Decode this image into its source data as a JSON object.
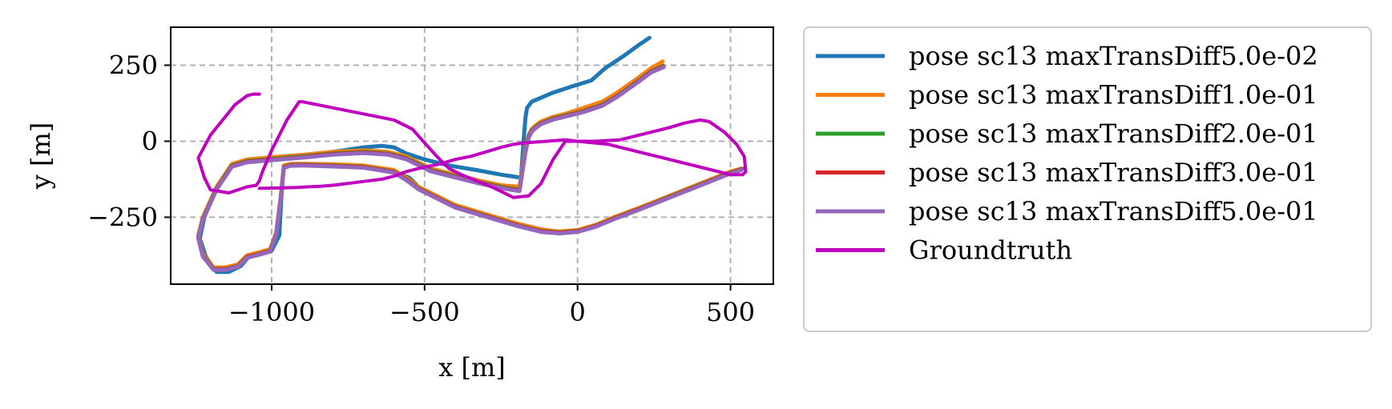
{
  "chart_data": {
    "type": "line",
    "xlabel": "x [m]",
    "ylabel": "y [m]",
    "xlim": [
      -1330,
      640
    ],
    "ylim": [
      -470,
      375
    ],
    "xticks": [
      -1000,
      -500,
      0,
      500
    ],
    "yticks": [
      250,
      0,
      -250
    ],
    "xtick_labels": [
      "−1000",
      "−500",
      "0",
      "500"
    ],
    "ytick_labels": [
      "250",
      "0",
      "−250"
    ],
    "grid": true,
    "legend_position": "outside-right",
    "series": [
      {
        "name": "pose sc13 maxTransDiff5.0e-02",
        "color": "#1f77b4",
        "x": [
          235,
          205,
          150,
          90,
          45,
          -20,
          -80,
          -150,
          -165,
          -170,
          -175,
          -185,
          -250,
          -330,
          -420,
          -500,
          -560,
          -600,
          -640,
          -700,
          -800,
          -900,
          -960,
          -1020,
          -1080,
          -1130,
          -1180,
          -1220,
          -1235,
          -1215,
          -1180,
          -1140,
          -1100,
          -1075,
          -1040,
          -1000,
          -975,
          -968,
          -960,
          -940,
          -900,
          -800,
          -700,
          -600,
          -550,
          -520,
          -470,
          -400,
          -300,
          -200,
          -120,
          -60,
          0,
          60,
          120,
          200,
          300,
          400,
          500,
          540
        ],
        "y": [
          340,
          320,
          280,
          240,
          200,
          180,
          160,
          130,
          110,
          80,
          20,
          -120,
          -110,
          -95,
          -80,
          -60,
          -40,
          -20,
          -15,
          -20,
          -35,
          -45,
          -50,
          -55,
          -65,
          -80,
          -150,
          -250,
          -320,
          -380,
          -430,
          -430,
          -410,
          -380,
          -370,
          -360,
          -310,
          -180,
          -80,
          -75,
          -75,
          -78,
          -82,
          -100,
          -120,
          -150,
          -180,
          -210,
          -240,
          -270,
          -290,
          -298,
          -295,
          -275,
          -250,
          -220,
          -180,
          -140,
          -100,
          -90
        ]
      },
      {
        "name": "pose sc13 maxTransDiff1.0e-01",
        "color": "#ff7f0e",
        "x": [
          278,
          240,
          200,
          130,
          80,
          20,
          -40,
          -80,
          -120,
          -140,
          -150,
          -160,
          -170,
          -190,
          -250,
          -320,
          -400,
          -480,
          -520,
          -560,
          -620,
          -700,
          -800,
          -900,
          -960,
          -1020,
          -1080,
          -1130,
          -1180,
          -1225,
          -1240,
          -1225,
          -1190,
          -1150,
          -1110,
          -1080,
          -1040,
          -1005,
          -985,
          -970,
          -960,
          -940,
          -900,
          -800,
          -700,
          -600,
          -560,
          -520,
          -460,
          -400,
          -300,
          -200,
          -120,
          -60,
          0,
          60,
          120,
          200,
          300,
          400,
          500,
          535
        ],
        "y": [
          262,
          240,
          210,
          160,
          130,
          110,
          90,
          80,
          65,
          50,
          40,
          20,
          -20,
          -150,
          -145,
          -130,
          -110,
          -90,
          -70,
          -50,
          -35,
          -30,
          -35,
          -45,
          -50,
          -55,
          -60,
          -75,
          -150,
          -250,
          -310,
          -370,
          -415,
          -415,
          -405,
          -375,
          -365,
          -355,
          -300,
          -180,
          -80,
          -75,
          -74,
          -76,
          -80,
          -95,
          -120,
          -150,
          -180,
          -210,
          -240,
          -270,
          -290,
          -297,
          -292,
          -275,
          -250,
          -220,
          -180,
          -140,
          -100,
          -90
        ]
      },
      {
        "name": "pose sc13 maxTransDiff2.0e-01",
        "color": "#2ca02c",
        "x": [
          280,
          240,
          200,
          130,
          80,
          20,
          -40,
          -80,
          -120,
          -140,
          -150,
          -160,
          -170,
          -190,
          -250,
          -320,
          -400,
          -480,
          -520,
          -560,
          -620,
          -700,
          -800,
          -900,
          -960,
          -1020,
          -1080,
          -1130,
          -1180,
          -1225,
          -1240,
          -1225,
          -1190,
          -1150,
          -1110,
          -1080,
          -1040,
          -1005,
          -985,
          -970,
          -960,
          -940,
          -900,
          -800,
          -700,
          -600,
          -560,
          -520,
          -460,
          -400,
          -300,
          -200,
          -120,
          -60,
          0,
          60,
          120,
          200,
          300,
          400,
          500,
          535
        ],
        "y": [
          248,
          230,
          200,
          150,
          120,
          100,
          85,
          75,
          60,
          45,
          35,
          15,
          -30,
          -160,
          -150,
          -135,
          -115,
          -95,
          -75,
          -55,
          -40,
          -35,
          -40,
          -50,
          -55,
          -60,
          -65,
          -80,
          -155,
          -255,
          -315,
          -375,
          -420,
          -420,
          -410,
          -380,
          -370,
          -360,
          -305,
          -185,
          -85,
          -78,
          -77,
          -80,
          -84,
          -100,
          -125,
          -155,
          -185,
          -215,
          -245,
          -275,
          -295,
          -300,
          -295,
          -278,
          -253,
          -223,
          -183,
          -143,
          -103,
          -92
        ]
      },
      {
        "name": "pose sc13 maxTransDiff3.0e-01",
        "color": "#d62728",
        "x": [
          281,
          240,
          200,
          130,
          80,
          20,
          -40,
          -80,
          -120,
          -140,
          -150,
          -160,
          -170,
          -190,
          -250,
          -320,
          -400,
          -480,
          -520,
          -560,
          -620,
          -700,
          -800,
          -900,
          -960,
          -1020,
          -1080,
          -1130,
          -1180,
          -1225,
          -1240,
          -1225,
          -1190,
          -1150,
          -1110,
          -1080,
          -1040,
          -1005,
          -985,
          -970,
          -960,
          -940,
          -900,
          -800,
          -700,
          -600,
          -560,
          -520,
          -460,
          -400,
          -300,
          -200,
          -120,
          -60,
          0,
          60,
          120,
          200,
          300,
          400,
          500,
          535
        ],
        "y": [
          246,
          228,
          198,
          148,
          118,
          98,
          83,
          73,
          58,
          43,
          33,
          13,
          -32,
          -162,
          -152,
          -137,
          -117,
          -97,
          -77,
          -57,
          -42,
          -37,
          -42,
          -52,
          -57,
          -62,
          -67,
          -82,
          -157,
          -257,
          -317,
          -377,
          -421,
          -421,
          -411,
          -381,
          -371,
          -361,
          -306,
          -186,
          -86,
          -79,
          -78,
          -81,
          -85,
          -101,
          -126,
          -156,
          -186,
          -216,
          -246,
          -276,
          -296,
          -301,
          -296,
          -279,
          -254,
          -224,
          -184,
          -144,
          -104,
          -93
        ]
      },
      {
        "name": "pose sc13 maxTransDiff5.0e-01",
        "color": "#9467bd",
        "x": [
          282,
          240,
          200,
          130,
          80,
          20,
          -40,
          -80,
          -120,
          -140,
          -150,
          -160,
          -170,
          -190,
          -250,
          -320,
          -400,
          -480,
          -520,
          -560,
          -620,
          -700,
          -800,
          -900,
          -960,
          -1020,
          -1080,
          -1130,
          -1180,
          -1225,
          -1240,
          -1225,
          -1190,
          -1150,
          -1110,
          -1080,
          -1040,
          -1005,
          -985,
          -970,
          -960,
          -940,
          -900,
          -800,
          -700,
          -600,
          -560,
          -520,
          -460,
          -400,
          -300,
          -200,
          -120,
          -60,
          0,
          60,
          120,
          200,
          300,
          400,
          500,
          535
        ],
        "y": [
          244,
          226,
          196,
          146,
          116,
          96,
          81,
          71,
          56,
          41,
          31,
          11,
          -34,
          -164,
          -154,
          -139,
          -119,
          -99,
          -79,
          -59,
          -44,
          -39,
          -44,
          -54,
          -59,
          -64,
          -69,
          -84,
          -159,
          -259,
          -319,
          -379,
          -423,
          -423,
          -413,
          -383,
          -373,
          -363,
          -308,
          -188,
          -88,
          -81,
          -80,
          -83,
          -87,
          -103,
          -128,
          -158,
          -188,
          -218,
          -248,
          -278,
          -298,
          -303,
          -298,
          -281,
          -256,
          -226,
          -186,
          -146,
          -106,
          -95
        ]
      },
      {
        "name": "Groundtruth",
        "color": "#bf00bf",
        "x": [
          -1040,
          -1060,
          -1080,
          -1120,
          -1160,
          -1200,
          -1240,
          -1220,
          -1200,
          -1140,
          -1080,
          -1050,
          -1040,
          -1030,
          -1000,
          -950,
          -910,
          -900,
          -800,
          -700,
          -600,
          -540,
          -500,
          -460,
          -420,
          -380,
          -330,
          -270,
          -210,
          -160,
          -120,
          -80,
          -40,
          0,
          60,
          140,
          200,
          300,
          350,
          400,
          430,
          480,
          520,
          545,
          550,
          540,
          500,
          400,
          300,
          200,
          100,
          0,
          -40,
          -100,
          -170,
          -210,
          -250,
          -300,
          -350,
          -400,
          -450,
          -500,
          -560,
          -600,
          -640,
          -680,
          -720,
          -760,
          -800,
          -840,
          -880,
          -920,
          -960,
          -1000,
          -1040
        ],
        "y": [
          155,
          155,
          150,
          120,
          70,
          20,
          -55,
          -120,
          -160,
          -170,
          -150,
          -145,
          -130,
          -100,
          -30,
          70,
          130,
          130,
          110,
          90,
          70,
          40,
          -5,
          -50,
          -90,
          -110,
          -130,
          -155,
          -185,
          -180,
          -140,
          -60,
          0,
          0,
          0,
          5,
          20,
          45,
          60,
          70,
          65,
          30,
          -10,
          -50,
          -100,
          -110,
          -110,
          -85,
          -60,
          -35,
          -10,
          0,
          5,
          0,
          -5,
          -10,
          -20,
          -35,
          -50,
          -60,
          -75,
          -85,
          -100,
          -115,
          -125,
          -130,
          -135,
          -140,
          -145,
          -148,
          -150,
          -152,
          -153,
          -154,
          -155
        ]
      }
    ]
  }
}
